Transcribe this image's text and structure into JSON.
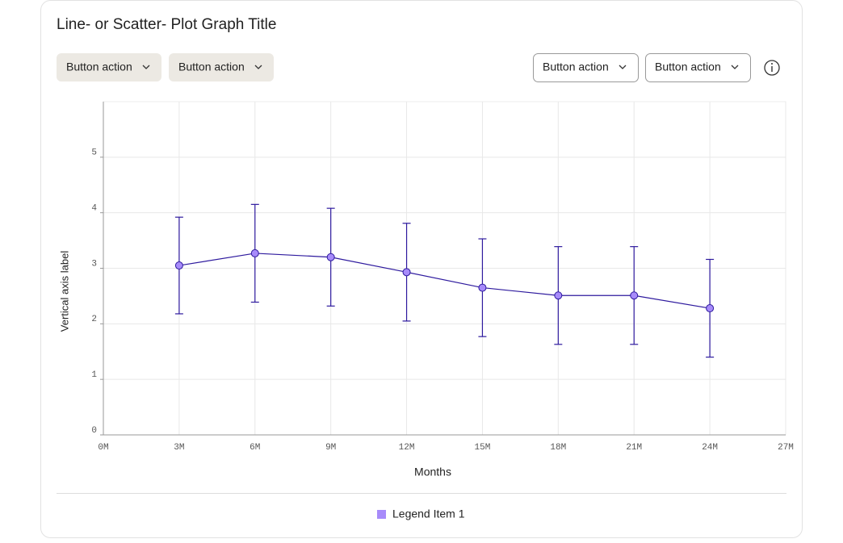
{
  "chart_data": {
    "type": "line",
    "title": "Line- or Scatter- Plot Graph Title",
    "x_label": "Months",
    "y_label": "Vertical axis label",
    "x": [
      3,
      6,
      9,
      12,
      15,
      18,
      21,
      24
    ],
    "series": [
      {
        "name": "Legend Item 1",
        "color": "#2e1a9e",
        "marker_color": "#a78bfa",
        "values": [
          3.05,
          3.27,
          3.2,
          2.93,
          2.65,
          2.51,
          2.51,
          2.28
        ],
        "errors": [
          0.87,
          0.88,
          0.88,
          0.88,
          0.88,
          0.88,
          0.88,
          0.88
        ]
      }
    ],
    "xlim": [
      0,
      27
    ],
    "xticks": [
      {
        "value": 0,
        "label": "0M"
      },
      {
        "value": 3,
        "label": "3M"
      },
      {
        "value": 6,
        "label": "6M"
      },
      {
        "value": 9,
        "label": "9M"
      },
      {
        "value": 12,
        "label": "12M"
      },
      {
        "value": 15,
        "label": "15M"
      },
      {
        "value": 18,
        "label": "18M"
      },
      {
        "value": 21,
        "label": "21M"
      },
      {
        "value": 24,
        "label": "24M"
      },
      {
        "value": 27,
        "label": "27M"
      }
    ],
    "ylim": [
      0,
      6
    ],
    "yticks": [
      0,
      1,
      2,
      3,
      4,
      5
    ],
    "grid": true
  },
  "buttons": [
    "Button action",
    "Button action",
    "Button action",
    "Button action"
  ]
}
